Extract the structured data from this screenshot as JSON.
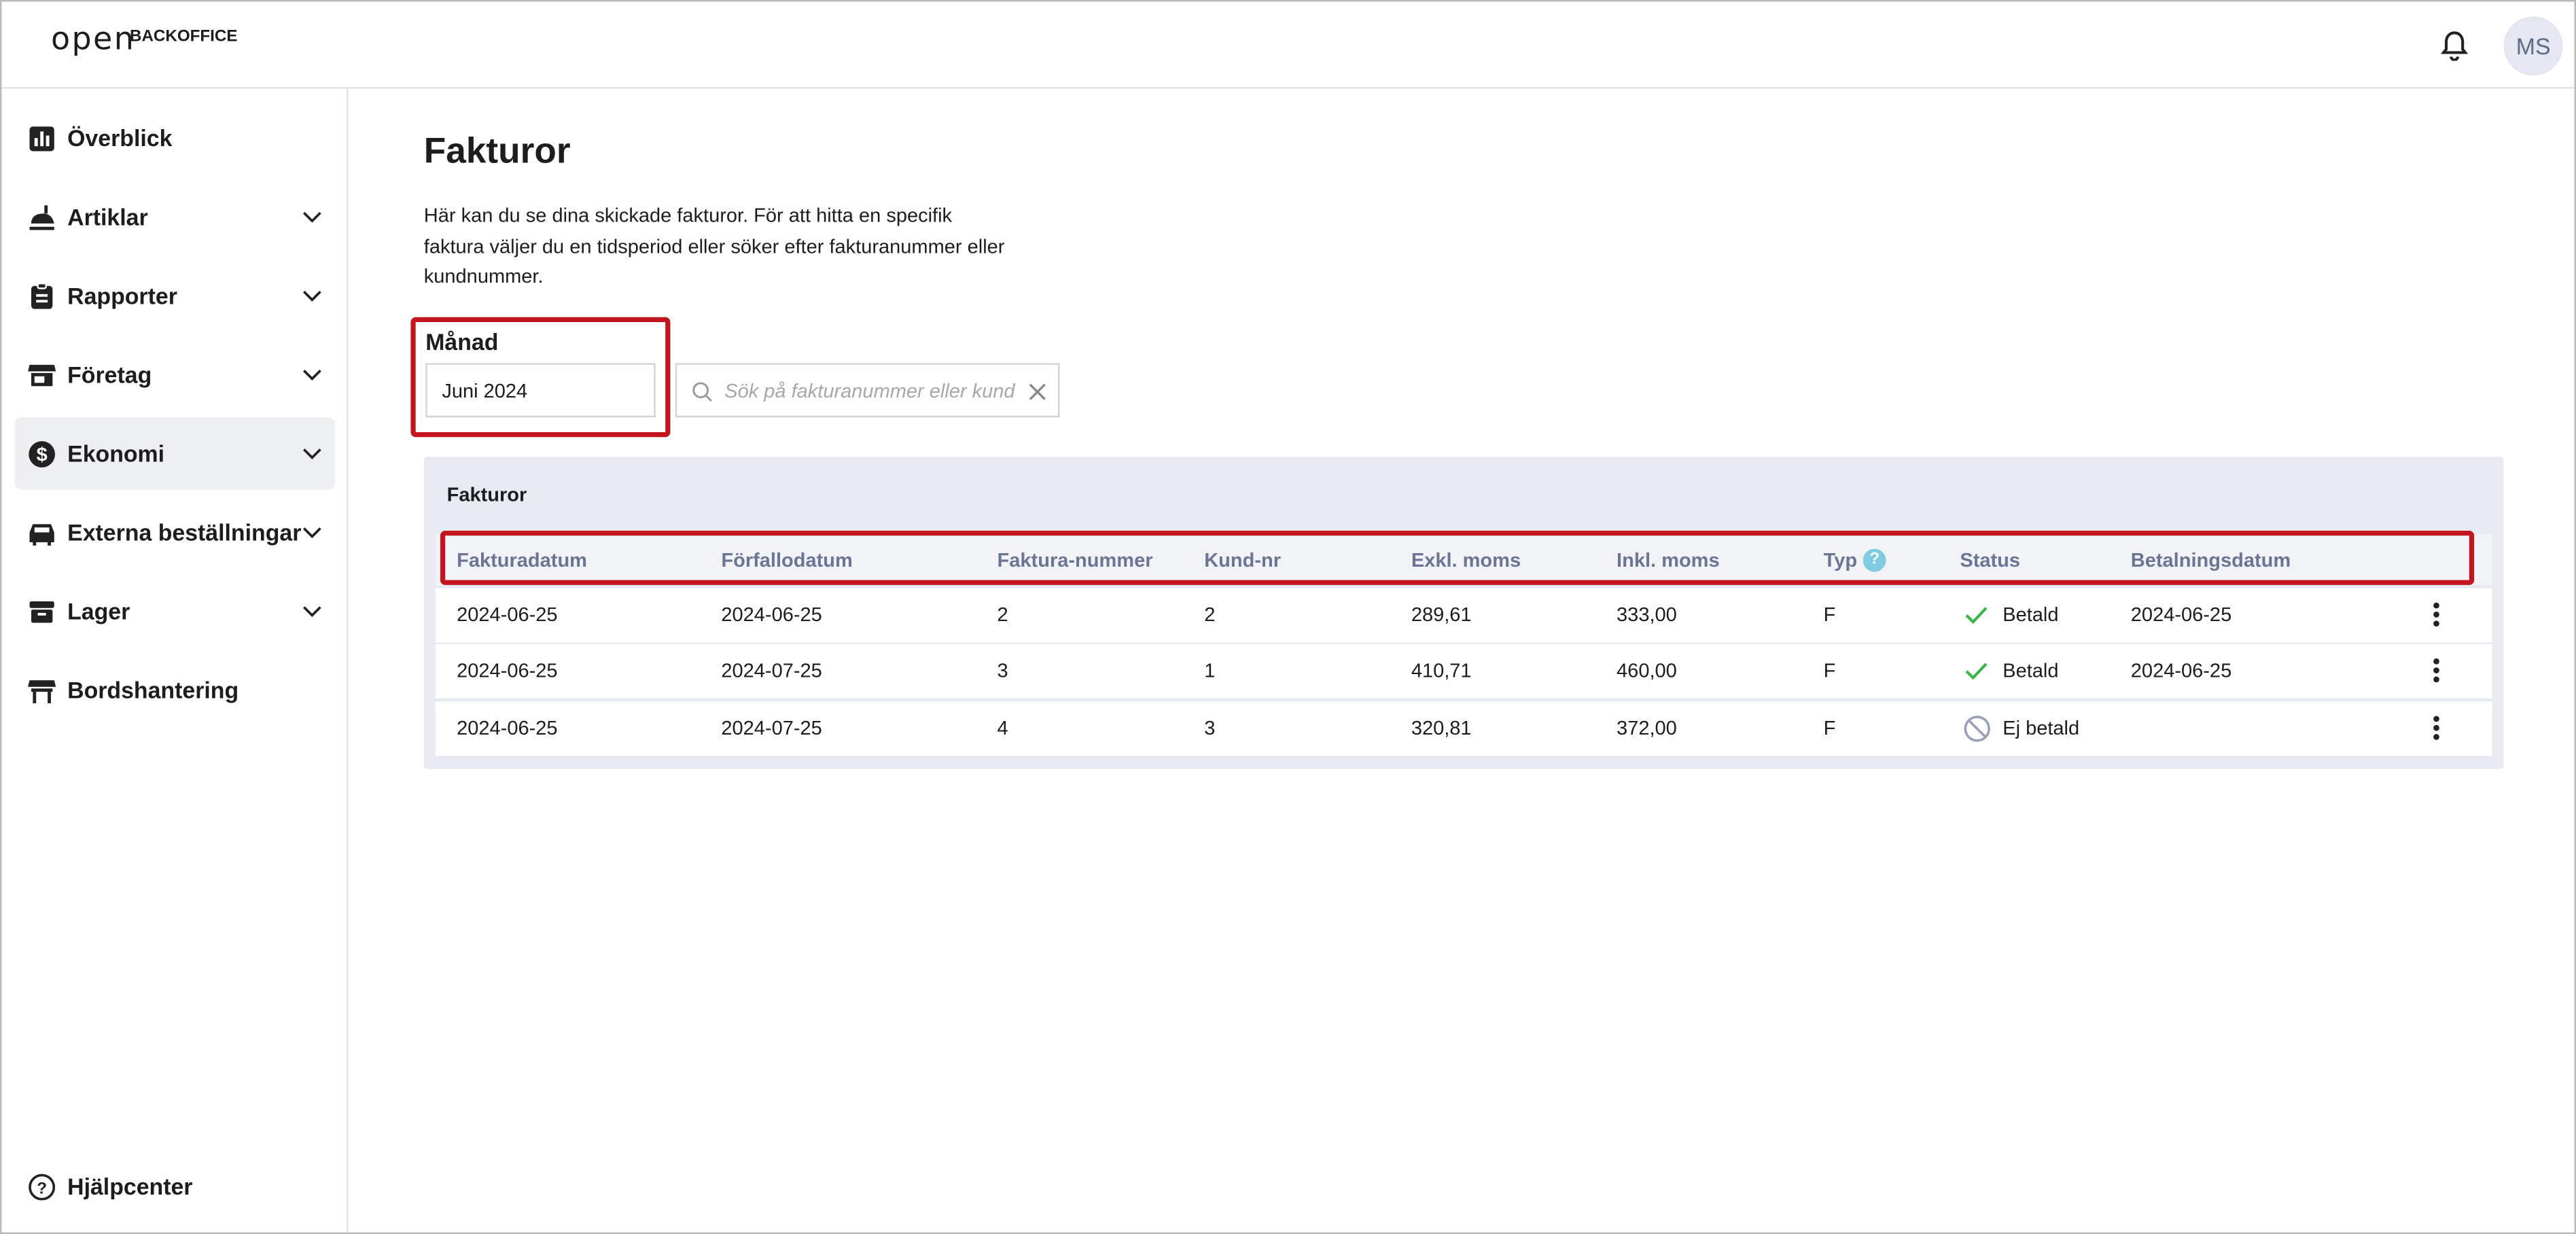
{
  "header": {
    "logo": "open",
    "brand": "BACKOFFICE",
    "avatar": "MS"
  },
  "sidebar": {
    "items": [
      "Överblick",
      "Artiklar",
      "Rapporter",
      "Företag",
      "Ekonomi",
      "Externa beställningar",
      "Lager",
      "Bordshantering"
    ],
    "help": "Hjälpcenter"
  },
  "main": {
    "title": "Fakturor",
    "description": "Här kan du se dina skickade fakturor. För att hitta en specifik faktura väljer du en tidsperiod eller söker efter fakturanummer eller kundnummer.",
    "month_label": "Månad",
    "month_value": "Juni 2024",
    "search_placeholder": "Sök på fakturanummer eller kundnummer"
  },
  "table": {
    "title": "Fakturor",
    "columns": [
      "Fakturadatum",
      "Förfallodatum",
      "Faktura-nummer",
      "Kund-nr",
      "Exkl. moms",
      "Inkl. moms",
      "Typ",
      "Status",
      "Betalningsdatum"
    ],
    "rows": [
      [
        "2024-06-25",
        "2024-06-25",
        "2",
        "2",
        "289,61",
        "333,00",
        "F",
        "Betald",
        "2024-06-25"
      ],
      [
        "2024-06-25",
        "2024-07-25",
        "3",
        "1",
        "410,71",
        "460,00",
        "F",
        "Betald",
        "2024-06-25"
      ],
      [
        "2024-06-25",
        "2024-07-25",
        "4",
        "3",
        "320,81",
        "372,00",
        "F",
        "Ej betald",
        null
      ]
    ]
  }
}
